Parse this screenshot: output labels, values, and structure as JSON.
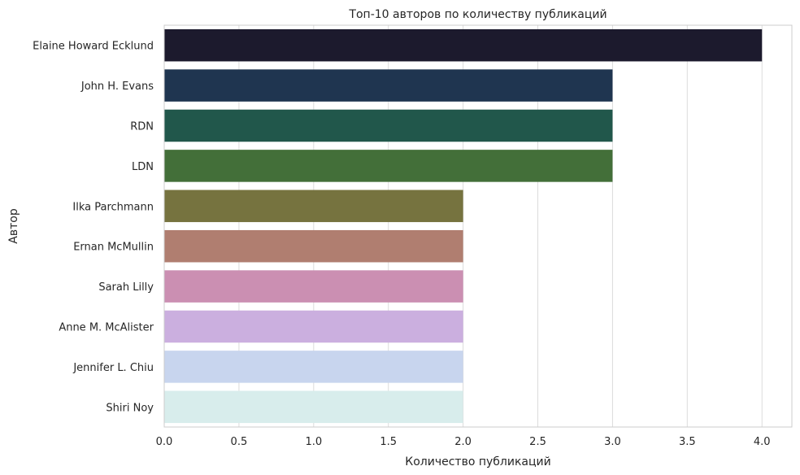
{
  "chart_data": {
    "type": "bar",
    "orientation": "horizontal",
    "title": "Топ-10 авторов по количеству публикаций",
    "xlabel": "Количество публикаций",
    "ylabel": "Автор",
    "xlim": [
      0,
      4.2
    ],
    "xticks": [
      "0.0",
      "0.5",
      "1.0",
      "1.5",
      "2.0",
      "2.5",
      "3.0",
      "3.5",
      "4.0"
    ],
    "grid": true,
    "categories": [
      "Elaine Howard Ecklund",
      "John H. Evans",
      "RDN",
      "LDN",
      "Ilka Parchmann",
      "Ernan McMullin",
      "Sarah Lilly",
      "Anne M. McAlister",
      "Jennifer L. Chiu",
      "Shiri Noy"
    ],
    "values": [
      4,
      3,
      3,
      3,
      2,
      2,
      2,
      2,
      2,
      2
    ],
    "colors": [
      "#1c1a2d",
      "#1f3550",
      "#21574b",
      "#436f39",
      "#76733f",
      "#b07e70",
      "#cb8fb2",
      "#cbafdf",
      "#c8d5ee",
      "#d8edec"
    ]
  }
}
